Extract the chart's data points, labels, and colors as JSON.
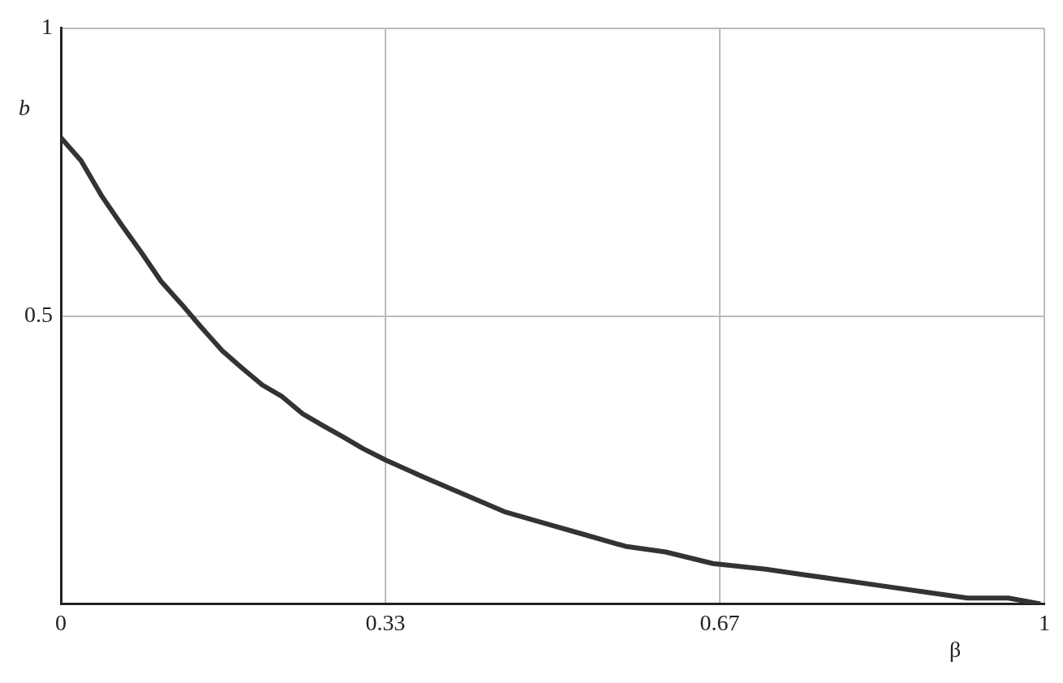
{
  "chart_data": {
    "type": "line",
    "xlabel": "β",
    "ylabel": "b",
    "xlim": [
      0,
      1
    ],
    "ylim": [
      0,
      1
    ],
    "xticks": [
      0,
      0.33,
      0.67,
      1
    ],
    "yticks": [
      0.5,
      1
    ],
    "grid": true,
    "legend": false,
    "marker": "none",
    "line_style": "solid",
    "series": [
      {
        "color": "#333333",
        "x": [
          0,
          0.0205,
          0.041,
          0.061,
          0.082,
          0.102,
          0.123,
          0.143,
          0.164,
          0.184,
          0.205,
          0.225,
          0.246,
          0.266,
          0.287,
          0.307,
          0.33,
          0.369,
          0.41,
          0.451,
          0.492,
          0.533,
          0.574,
          0.615,
          0.663,
          0.717,
          0.758,
          0.799,
          0.84,
          0.881,
          0.922,
          0.963,
          0.996
        ],
        "values": [
          0.81,
          0.77,
          0.71,
          0.66,
          0.61,
          0.56,
          0.52,
          0.48,
          0.44,
          0.41,
          0.38,
          0.36,
          0.33,
          0.31,
          0.29,
          0.27,
          0.25,
          0.22,
          0.19,
          0.16,
          0.14,
          0.12,
          0.1,
          0.09,
          0.07,
          0.06,
          0.05,
          0.04,
          0.03,
          0.02,
          0.01,
          0.01,
          0.0
        ]
      }
    ]
  }
}
